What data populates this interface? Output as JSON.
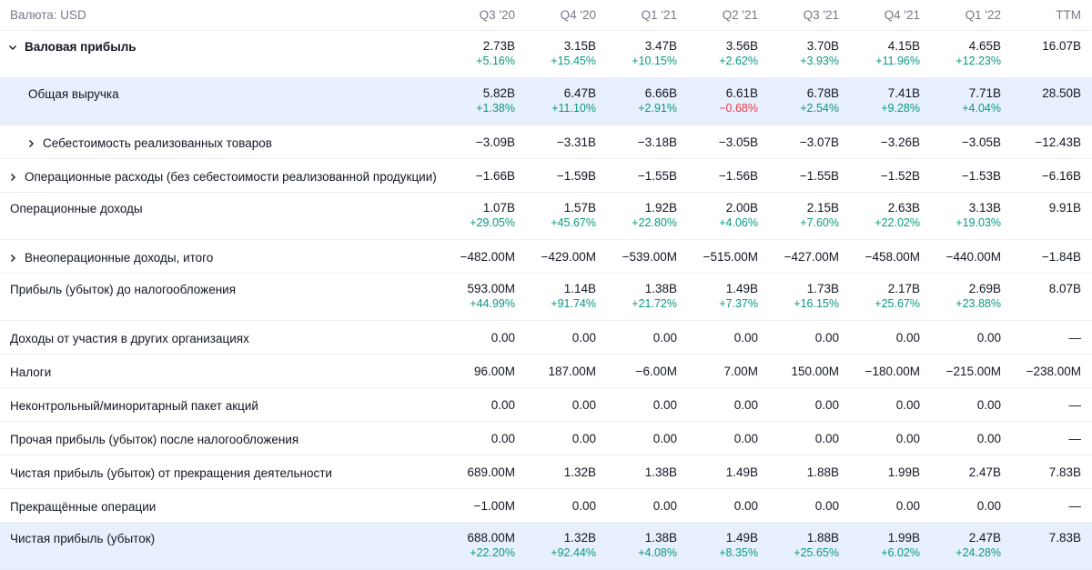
{
  "header": {
    "currency_label": "Валюта: USD",
    "columns": [
      "Q3 '20",
      "Q4 '20",
      "Q1 '21",
      "Q2 '21",
      "Q3 '21",
      "Q4 '21",
      "Q1 '22",
      "TTM"
    ]
  },
  "rows": [
    {
      "label": "Валовая прибыль",
      "values": [
        "2.73B",
        "3.15B",
        "3.47B",
        "3.56B",
        "3.70B",
        "4.15B",
        "4.65B",
        "16.07B"
      ],
      "changes": [
        "+5.16%",
        "+15.45%",
        "+10.15%",
        "+2.62%",
        "+3.93%",
        "+11.96%",
        "+12.23%"
      ]
    },
    {
      "label": "Общая выручка",
      "values": [
        "5.82B",
        "6.47B",
        "6.66B",
        "6.61B",
        "6.78B",
        "7.41B",
        "7.71B",
        "28.50B"
      ],
      "changes": [
        "+1.38%",
        "+11.10%",
        "+2.91%",
        "−0.68%",
        "+2.54%",
        "+9.28%",
        "+4.04%"
      ]
    },
    {
      "label": "Себестоимость реализованных товаров",
      "values": [
        "−3.09B",
        "−3.31B",
        "−3.18B",
        "−3.05B",
        "−3.07B",
        "−3.26B",
        "−3.05B",
        "−12.43B"
      ]
    },
    {
      "label": "Операционные расходы (без себестоимости реализованной продукции)",
      "values": [
        "−1.66B",
        "−1.59B",
        "−1.55B",
        "−1.56B",
        "−1.55B",
        "−1.52B",
        "−1.53B",
        "−6.16B"
      ]
    },
    {
      "label": "Операционные доходы",
      "values": [
        "1.07B",
        "1.57B",
        "1.92B",
        "2.00B",
        "2.15B",
        "2.63B",
        "3.13B",
        "9.91B"
      ],
      "changes": [
        "+29.05%",
        "+45.67%",
        "+22.80%",
        "+4.06%",
        "+7.60%",
        "+22.02%",
        "+19.03%"
      ]
    },
    {
      "label": "Внеоперационные доходы, итого",
      "values": [
        "−482.00M",
        "−429.00M",
        "−539.00M",
        "−515.00M",
        "−427.00M",
        "−458.00M",
        "−440.00M",
        "−1.84B"
      ]
    },
    {
      "label": "Прибыль (убыток) до налогообложения",
      "values": [
        "593.00M",
        "1.14B",
        "1.38B",
        "1.49B",
        "1.73B",
        "2.17B",
        "2.69B",
        "8.07B"
      ],
      "changes": [
        "+44.99%",
        "+91.74%",
        "+21.72%",
        "+7.37%",
        "+16.15%",
        "+25.67%",
        "+23.88%"
      ]
    },
    {
      "label": "Доходы от участия в других организациях",
      "values": [
        "0.00",
        "0.00",
        "0.00",
        "0.00",
        "0.00",
        "0.00",
        "0.00",
        "—"
      ]
    },
    {
      "label": "Налоги",
      "values": [
        "96.00M",
        "187.00M",
        "−6.00M",
        "7.00M",
        "150.00M",
        "−180.00M",
        "−215.00M",
        "−238.00M"
      ]
    },
    {
      "label": "Неконтрольный/миноритарный пакет акций",
      "values": [
        "0.00",
        "0.00",
        "0.00",
        "0.00",
        "0.00",
        "0.00",
        "0.00",
        "—"
      ]
    },
    {
      "label": "Прочая прибыль (убыток) после налогообложения",
      "values": [
        "0.00",
        "0.00",
        "0.00",
        "0.00",
        "0.00",
        "0.00",
        "0.00",
        "—"
      ]
    },
    {
      "label": "Чистая прибыль (убыток) от прекращения деятельности",
      "values": [
        "689.00M",
        "1.32B",
        "1.38B",
        "1.49B",
        "1.88B",
        "1.99B",
        "2.47B",
        "7.83B"
      ]
    },
    {
      "label": "Прекращённые операции",
      "values": [
        "−1.00M",
        "0.00",
        "0.00",
        "0.00",
        "0.00",
        "0.00",
        "0.00",
        "—"
      ]
    },
    {
      "label": "Чистая прибыль (убыток)",
      "values": [
        "688.00M",
        "1.32B",
        "1.38B",
        "1.49B",
        "1.88B",
        "1.99B",
        "2.47B",
        "7.83B"
      ],
      "changes": [
        "+22.20%",
        "+92.44%",
        "+4.08%",
        "+8.35%",
        "+25.65%",
        "+6.02%",
        "+24.28%"
      ]
    }
  ],
  "colors": {
    "positive": "#089981",
    "negative": "#f23645",
    "highlight_row": "#e8f0fd",
    "header_text": "#787b86"
  },
  "icons": {
    "expanded": "chevron-down-icon",
    "collapsed": "chevron-right-icon"
  }
}
